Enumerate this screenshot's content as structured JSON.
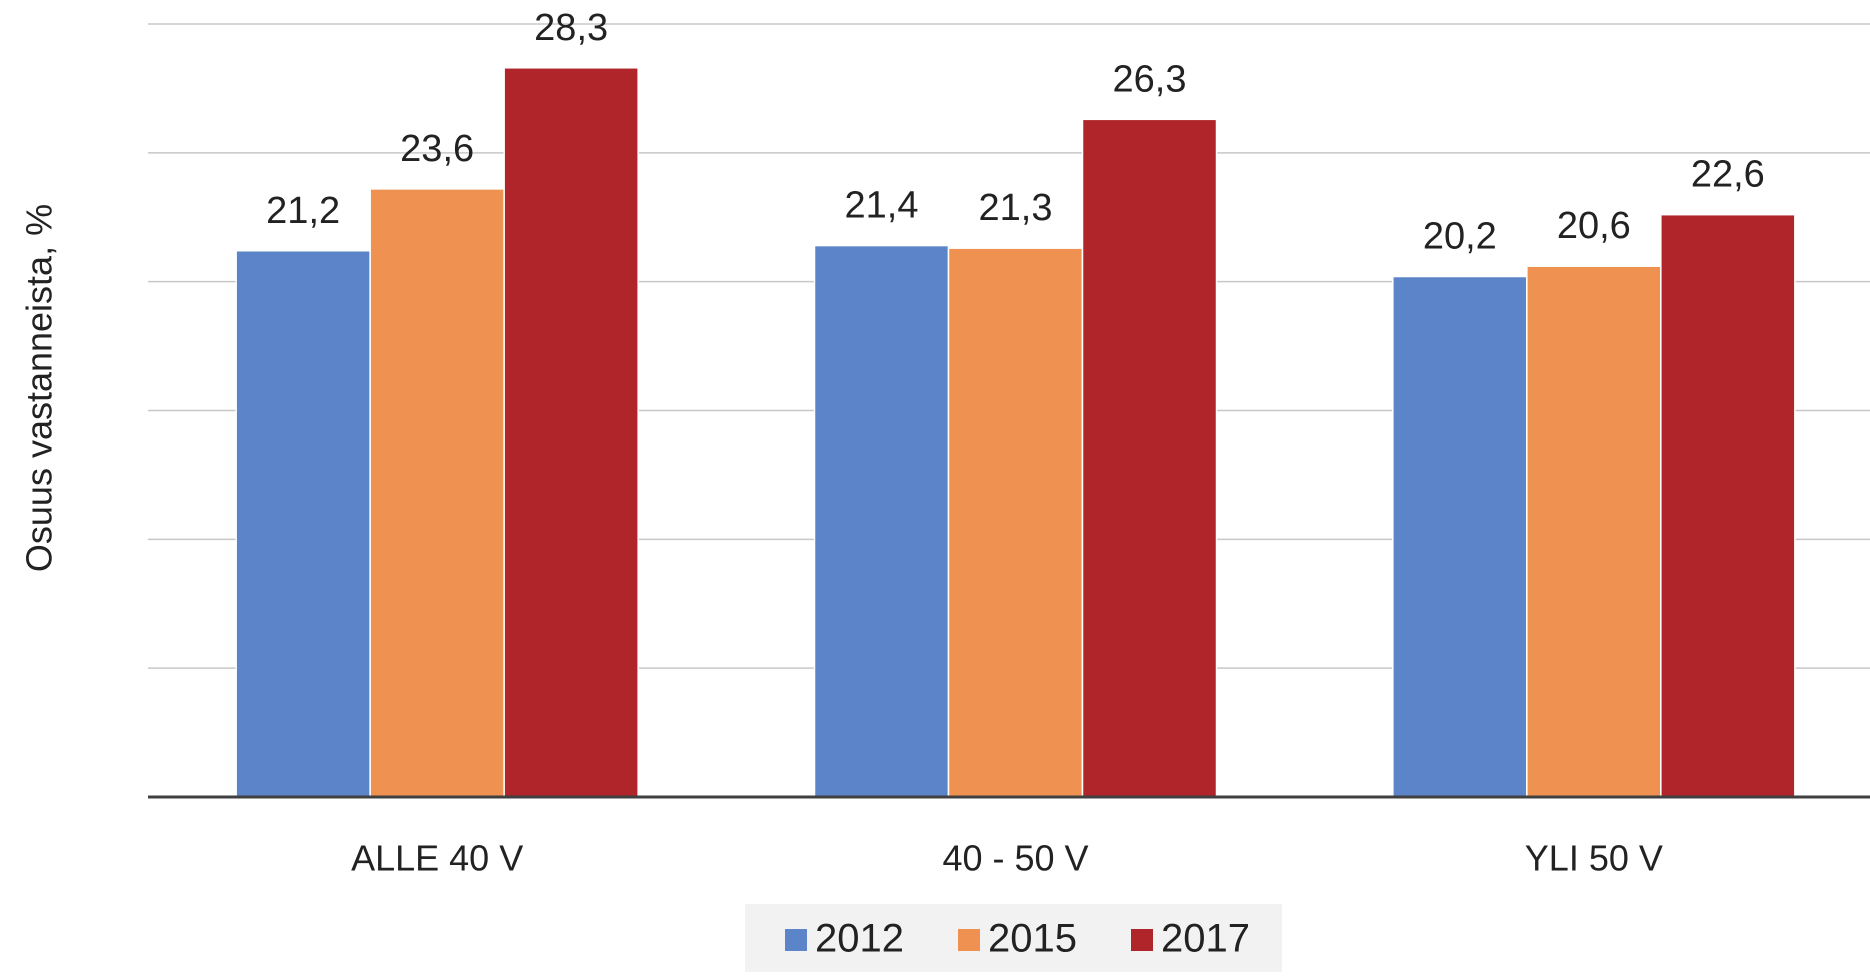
{
  "chart_data": {
    "type": "bar",
    "y_label": "Osuus vastanneista, %",
    "categories": [
      "ALLE 40 V",
      "40 - 50 V",
      "YLI 50 V"
    ],
    "series": [
      {
        "name": "2012",
        "color": "#5b84c9",
        "values": [
          21.2,
          21.4,
          20.2
        ],
        "value_labels": [
          "21,2",
          "21,4",
          "20,2"
        ]
      },
      {
        "name": "2015",
        "color": "#ef9150",
        "values": [
          23.6,
          21.3,
          20.6
        ],
        "value_labels": [
          "23,6",
          "21,3",
          "20,6"
        ]
      },
      {
        "name": "2017",
        "color": "#b0252a",
        "values": [
          28.3,
          26.3,
          22.6
        ],
        "value_labels": [
          "28,3",
          "26,3",
          "22,6"
        ]
      }
    ],
    "ylim": [
      0,
      30
    ],
    "yticks": [
      0,
      5,
      10,
      15,
      20,
      25,
      30
    ],
    "grid": true,
    "legend": "bottom"
  }
}
